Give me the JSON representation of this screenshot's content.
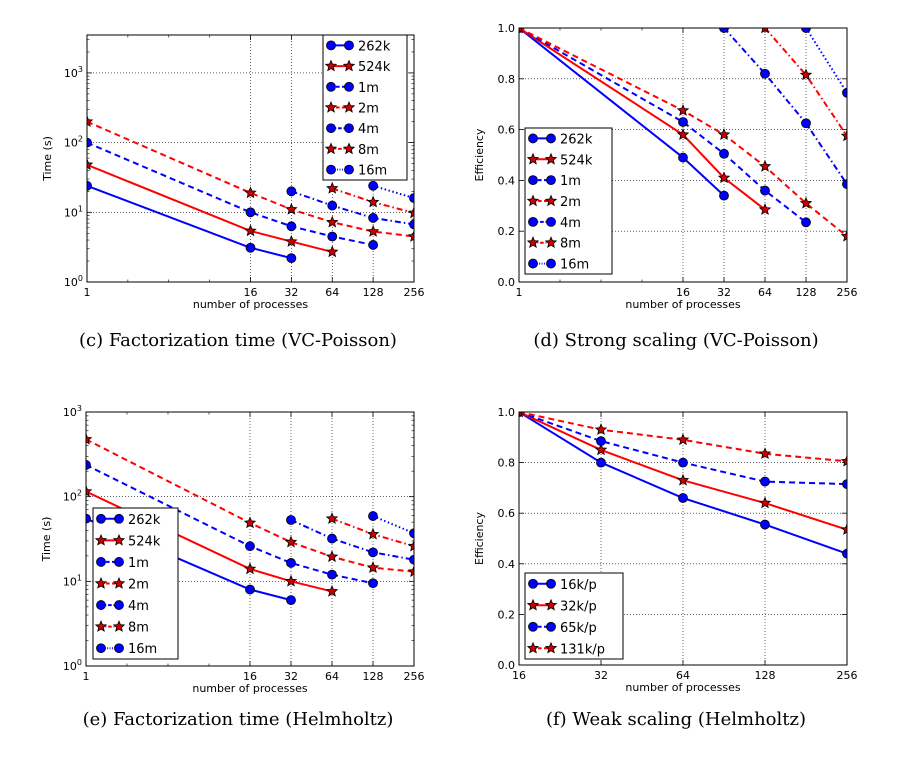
{
  "chart_data": [
    {
      "type": "line",
      "caption": "(c) Factorization time (VC-Poisson)",
      "xlabel": "number of processes",
      "ylabel": "Time (s)",
      "xscale": "log2",
      "yscale": "log10",
      "xlim": [
        1,
        256
      ],
      "ylim": [
        1,
        3500
      ],
      "xticks": [
        1,
        16,
        32,
        64,
        128,
        256
      ],
      "yticks": [
        1,
        10,
        100,
        1000
      ],
      "ytick_labels": [
        [
          "10",
          "0"
        ],
        [
          "10",
          "1"
        ],
        [
          "10",
          "2"
        ],
        [
          "10",
          "3"
        ]
      ],
      "grid": true,
      "legend_position": "top-right",
      "series": [
        {
          "name": "262k",
          "color": "#0000ff",
          "marker": "circle",
          "linestyle": "solid",
          "x": [
            1,
            16,
            32
          ],
          "y": [
            24,
            3.1,
            2.2
          ]
        },
        {
          "name": "524k",
          "color": "#ff0000",
          "marker": "star",
          "linestyle": "solid",
          "x": [
            1,
            16,
            32,
            64
          ],
          "y": [
            48,
            5.4,
            3.8,
            2.7
          ]
        },
        {
          "name": "1m",
          "color": "#0000ff",
          "marker": "circle",
          "linestyle": "dashed",
          "x": [
            1,
            16,
            32,
            64,
            128
          ],
          "y": [
            100,
            10,
            6.3,
            4.5,
            3.4
          ]
        },
        {
          "name": "2m",
          "color": "#ff0000",
          "marker": "star",
          "linestyle": "dashed",
          "x": [
            1,
            16,
            32,
            64,
            128,
            256
          ],
          "y": [
            200,
            19,
            11,
            7.2,
            5.3,
            4.5
          ]
        },
        {
          "name": "4m",
          "color": "#0000ff",
          "marker": "circle",
          "linestyle": "dashdot",
          "x": [
            32,
            64,
            128,
            256
          ],
          "y": [
            20,
            12.5,
            8.3,
            6.7
          ]
        },
        {
          "name": "8m",
          "color": "#ff0000",
          "marker": "star",
          "linestyle": "dashdot",
          "x": [
            64,
            128,
            256
          ],
          "y": [
            22,
            14,
            9.8
          ]
        },
        {
          "name": "16m",
          "color": "#0000ff",
          "marker": "circle",
          "linestyle": "dotted",
          "x": [
            128,
            256
          ],
          "y": [
            24,
            16
          ]
        }
      ]
    },
    {
      "type": "line",
      "caption": "(d) Strong scaling (VC-Poisson)",
      "xlabel": "number of processes",
      "ylabel": "Efficiency",
      "xscale": "log2",
      "yscale": "linear",
      "xlim": [
        1,
        256
      ],
      "ylim": [
        0,
        1
      ],
      "xticks": [
        1,
        16,
        32,
        64,
        128,
        256
      ],
      "yticks": [
        0,
        0.2,
        0.4,
        0.6,
        0.8,
        1.0
      ],
      "ytick_labels": [
        "0.0",
        "0.2",
        "0.4",
        "0.6",
        "0.8",
        "1.0"
      ],
      "grid": true,
      "legend_position": "lower-left",
      "series": [
        {
          "name": "262k",
          "color": "#0000ff",
          "marker": "circle",
          "linestyle": "solid",
          "x": [
            1,
            16,
            32
          ],
          "y": [
            1.0,
            0.49,
            0.34
          ]
        },
        {
          "name": "524k",
          "color": "#ff0000",
          "marker": "star",
          "linestyle": "solid",
          "x": [
            1,
            16,
            32,
            64
          ],
          "y": [
            1.0,
            0.58,
            0.41,
            0.285
          ]
        },
        {
          "name": "1m",
          "color": "#0000ff",
          "marker": "circle",
          "linestyle": "dashed",
          "x": [
            1,
            16,
            32,
            64,
            128
          ],
          "y": [
            1.0,
            0.63,
            0.505,
            0.36,
            0.235
          ]
        },
        {
          "name": "2m",
          "color": "#ff0000",
          "marker": "star",
          "linestyle": "dashed",
          "x": [
            1,
            16,
            32,
            64,
            128,
            256
          ],
          "y": [
            1.0,
            0.675,
            0.58,
            0.455,
            0.31,
            0.18
          ]
        },
        {
          "name": "4m",
          "color": "#0000ff",
          "marker": "circle",
          "linestyle": "dashdot",
          "x": [
            32,
            64,
            128,
            256
          ],
          "y": [
            1.0,
            0.82,
            0.625,
            0.385
          ]
        },
        {
          "name": "8m",
          "color": "#ff0000",
          "marker": "star",
          "linestyle": "dashdot",
          "x": [
            64,
            128,
            256
          ],
          "y": [
            1.0,
            0.815,
            0.575
          ]
        },
        {
          "name": "16m",
          "color": "#0000ff",
          "marker": "circle",
          "linestyle": "dotted",
          "x": [
            128,
            256
          ],
          "y": [
            1.0,
            0.745
          ]
        }
      ]
    },
    {
      "type": "line",
      "caption": "(e) Factorization time (Helmholtz)",
      "xlabel": "number of processes",
      "ylabel": "Time (s)",
      "xscale": "log2",
      "yscale": "log10",
      "xlim": [
        1,
        256
      ],
      "ylim": [
        1,
        1000
      ],
      "xticks": [
        1,
        16,
        32,
        64,
        128,
        256
      ],
      "yticks": [
        1,
        10,
        100,
        1000
      ],
      "ytick_labels": [
        [
          "10",
          "0"
        ],
        [
          "10",
          "1"
        ],
        [
          "10",
          "2"
        ],
        [
          "10",
          "3"
        ]
      ],
      "grid": true,
      "legend_position": "lower-left",
      "series": [
        {
          "name": "262k",
          "color": "#0000ff",
          "marker": "circle",
          "linestyle": "solid",
          "x": [
            1,
            16,
            32
          ],
          "y": [
            55,
            8.0,
            6.0
          ]
        },
        {
          "name": "524k",
          "color": "#ff0000",
          "marker": "star",
          "linestyle": "solid",
          "x": [
            1,
            16,
            32,
            64
          ],
          "y": [
            115,
            14,
            10,
            7.6
          ]
        },
        {
          "name": "1m",
          "color": "#0000ff",
          "marker": "circle",
          "linestyle": "dashed",
          "x": [
            1,
            16,
            32,
            64,
            128
          ],
          "y": [
            237,
            26,
            16.5,
            12,
            9.5
          ]
        },
        {
          "name": "2m",
          "color": "#ff0000",
          "marker": "star",
          "linestyle": "dashed",
          "x": [
            1,
            16,
            32,
            64,
            128,
            256
          ],
          "y": [
            475,
            49,
            29,
            19.5,
            14.5,
            13
          ]
        },
        {
          "name": "4m",
          "color": "#0000ff",
          "marker": "circle",
          "linestyle": "dashdot",
          "x": [
            32,
            64,
            128,
            256
          ],
          "y": [
            53,
            32,
            22,
            18
          ]
        },
        {
          "name": "8m",
          "color": "#ff0000",
          "marker": "star",
          "linestyle": "dashdot",
          "x": [
            64,
            128,
            256
          ],
          "y": [
            55,
            36,
            26
          ]
        },
        {
          "name": "16m",
          "color": "#0000ff",
          "marker": "circle",
          "linestyle": "dotted",
          "x": [
            128,
            256
          ],
          "y": [
            59,
            37
          ]
        }
      ]
    },
    {
      "type": "line",
      "caption": "(f) Weak scaling (Helmholtz)",
      "xlabel": "number of processes",
      "ylabel": "Efficiency",
      "xscale": "log2",
      "yscale": "linear",
      "xlim": [
        16,
        256
      ],
      "ylim": [
        0,
        1
      ],
      "xticks": [
        16,
        32,
        64,
        128,
        256
      ],
      "yticks": [
        0,
        0.2,
        0.4,
        0.6,
        0.8,
        1.0
      ],
      "ytick_labels": [
        "0.0",
        "0.2",
        "0.4",
        "0.6",
        "0.8",
        "1.0"
      ],
      "grid": true,
      "legend_position": "lower-left",
      "series": [
        {
          "name": "16k/p",
          "color": "#0000ff",
          "marker": "circle",
          "linestyle": "solid",
          "x": [
            16,
            32,
            64,
            128,
            256
          ],
          "y": [
            1.0,
            0.8,
            0.66,
            0.555,
            0.44
          ]
        },
        {
          "name": "32k/p",
          "color": "#ff0000",
          "marker": "star",
          "linestyle": "solid",
          "x": [
            16,
            32,
            64,
            128,
            256
          ],
          "y": [
            1.0,
            0.85,
            0.73,
            0.64,
            0.535
          ]
        },
        {
          "name": "65k/p",
          "color": "#0000ff",
          "marker": "circle",
          "linestyle": "dashed",
          "x": [
            16,
            32,
            64,
            128,
            256
          ],
          "y": [
            1.0,
            0.885,
            0.8,
            0.725,
            0.715
          ]
        },
        {
          "name": "131k/p",
          "color": "#ff0000",
          "marker": "star",
          "linestyle": "dashed",
          "x": [
            16,
            32,
            64,
            128,
            256
          ],
          "y": [
            1.0,
            0.93,
            0.89,
            0.835,
            0.805
          ]
        }
      ]
    }
  ]
}
